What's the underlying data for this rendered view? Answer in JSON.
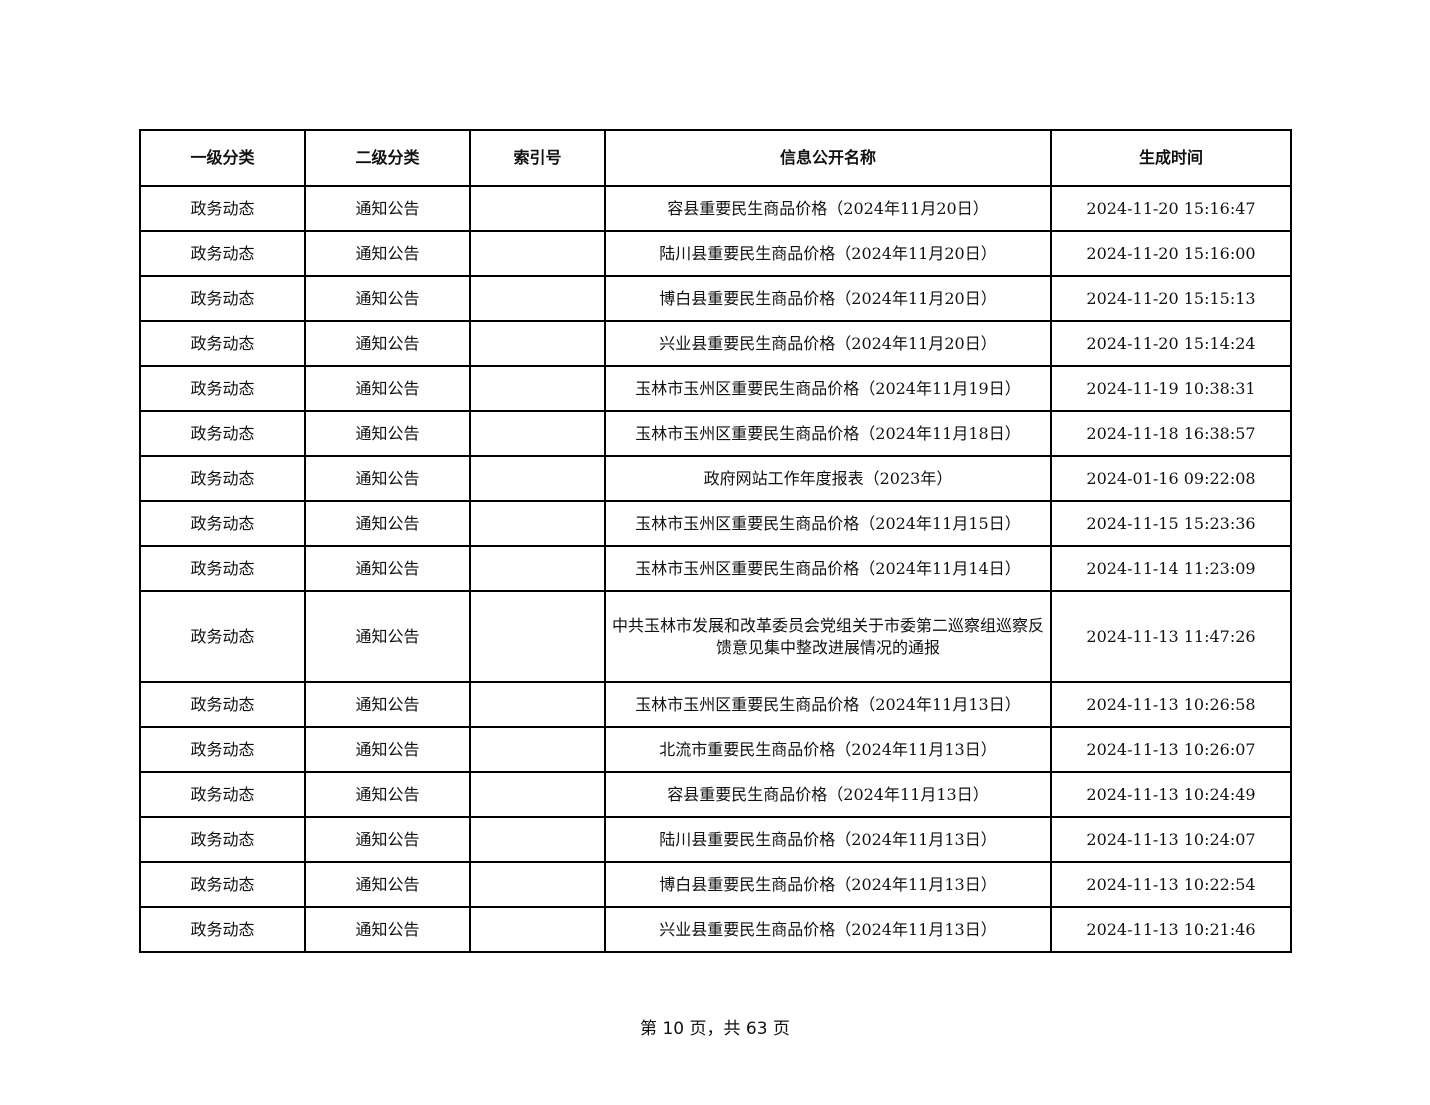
{
  "table": {
    "headers": [
      "一级分类",
      "二级分类",
      "索引号",
      "信息公开名称",
      "生成时间"
    ],
    "rows": [
      [
        "政务动态",
        "通知公告",
        "",
        "容县重要民生商品价格（2024年11月20日）",
        "2024-11-20 15:16:47"
      ],
      [
        "政务动态",
        "通知公告",
        "",
        "陆川县重要民生商品价格（2024年11月20日）",
        "2024-11-20 15:16:00"
      ],
      [
        "政务动态",
        "通知公告",
        "",
        "博白县重要民生商品价格（2024年11月20日）",
        "2024-11-20 15:15:13"
      ],
      [
        "政务动态",
        "通知公告",
        "",
        "兴业县重要民生商品价格（2024年11月20日）",
        "2024-11-20 15:14:24"
      ],
      [
        "政务动态",
        "通知公告",
        "",
        "玉林市玉州区重要民生商品价格（2024年11月19日）",
        "2024-11-19 10:38:31"
      ],
      [
        "政务动态",
        "通知公告",
        "",
        "玉林市玉州区重要民生商品价格（2024年11月18日）",
        "2024-11-18 16:38:57"
      ],
      [
        "政务动态",
        "通知公告",
        "",
        "政府网站工作年度报表（2023年）",
        "2024-01-16 09:22:08"
      ],
      [
        "政务动态",
        "通知公告",
        "",
        "玉林市玉州区重要民生商品价格（2024年11月15日）",
        "2024-11-15 15:23:36"
      ],
      [
        "政务动态",
        "通知公告",
        "",
        "玉林市玉州区重要民生商品价格（2024年11月14日）",
        "2024-11-14 11:23:09"
      ],
      [
        "政务动态",
        "通知公告",
        "",
        "中共玉林市发展和改革委员会党组关于市委第二巡察组巡察反馈意见集中整改进展情况的通报",
        "2024-11-13 11:47:26"
      ],
      [
        "政务动态",
        "通知公告",
        "",
        "玉林市玉州区重要民生商品价格（2024年11月13日）",
        "2024-11-13 10:26:58"
      ],
      [
        "政务动态",
        "通知公告",
        "",
        "北流市重要民生商品价格（2024年11月13日）",
        "2024-11-13 10:26:07"
      ],
      [
        "政务动态",
        "通知公告",
        "",
        "容县重要民生商品价格（2024年11月13日）",
        "2024-11-13 10:24:49"
      ],
      [
        "政务动态",
        "通知公告",
        "",
        "陆川县重要民生商品价格（2024年11月13日）",
        "2024-11-13 10:24:07"
      ],
      [
        "政务动态",
        "通知公告",
        "",
        "博白县重要民生商品价格（2024年11月13日）",
        "2024-11-13 10:22:54"
      ],
      [
        "政务动态",
        "通知公告",
        "",
        "兴业县重要民生商品价格（2024年11月13日）",
        "2024-11-13 10:21:46"
      ]
    ]
  },
  "footer": {
    "text": "第 10 页，共 63 页",
    "current_page": 10,
    "total_pages": 63
  }
}
